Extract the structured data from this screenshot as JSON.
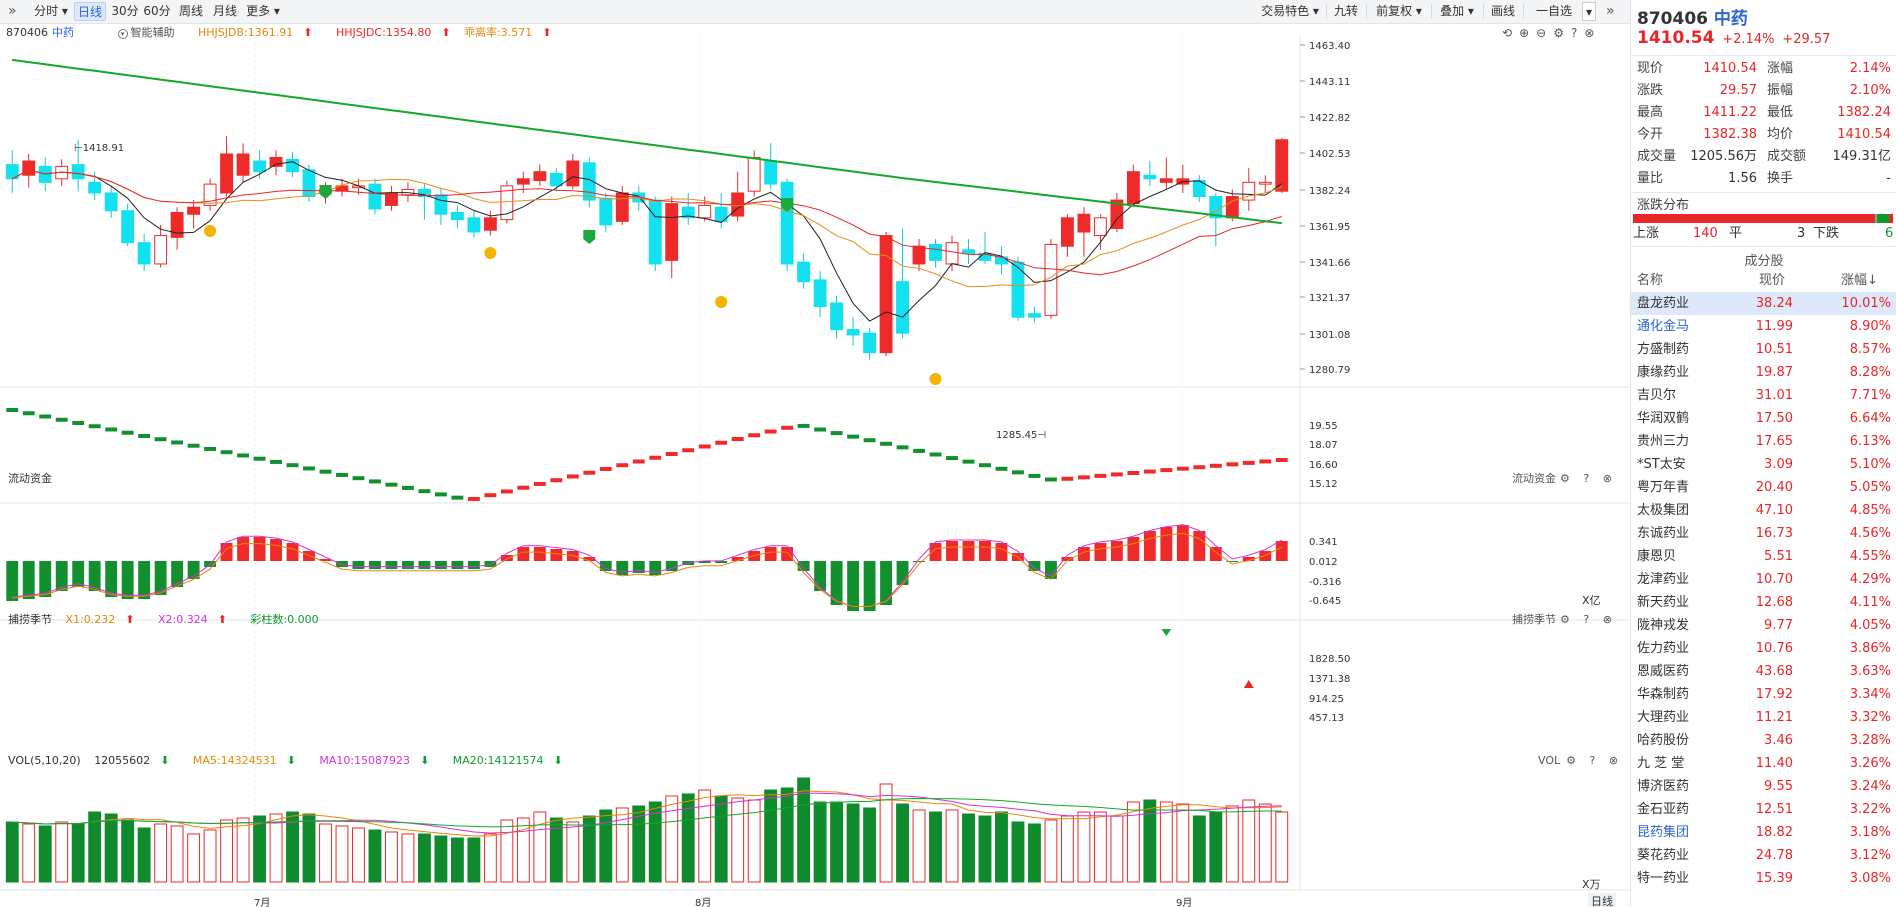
{
  "toolbar": {
    "left": [
      "分时",
      "日线",
      "30分",
      "60分",
      "周线",
      "月线",
      "更多"
    ],
    "right": [
      "交易特色",
      "九转",
      "前复权",
      "叠加",
      "画线",
      "一自选"
    ]
  },
  "header": {
    "code": "870406",
    "name": "中药",
    "smart": "智能辅助",
    "hh1": "HHJSJDB:1361.91",
    "hh2": "HHJSJDC:1354.80",
    "deviation": "乖离率:3.571"
  },
  "main_axis": [
    "1463.40",
    "1443.11",
    "1422.82",
    "1402.53",
    "1382.24",
    "1361.95",
    "1341.66",
    "1321.37",
    "1301.08",
    "1280.79"
  ],
  "annotations": {
    "high": "1418.91",
    "low": "1285.45"
  },
  "flow": {
    "title": "流动资金",
    "axis": [
      "19.55",
      "18.07",
      "16.60",
      "15.12"
    ],
    "unit": "X亿"
  },
  "catch": {
    "title": "捕捞季节",
    "x1": "X1:0.232",
    "x2": "X2:0.324",
    "bars": "彩柱数:0.000",
    "axis": [
      "0.341",
      "0.012",
      "-0.316",
      "-0.645"
    ]
  },
  "vol": {
    "title": "VOL(5,10,20)",
    "value": "12055602",
    "ma5": "MA5:14324531",
    "ma10": "MA10:15087923",
    "ma20": "MA20:14121574",
    "axis": [
      "1828.50",
      "1371.38",
      "914.25",
      "457.13"
    ],
    "unit": "X万"
  },
  "months": [
    "7月",
    "8月",
    "9月"
  ],
  "period_label": "日线",
  "side": {
    "code": "870406",
    "name": "中药",
    "price": "1410.54",
    "pct": "+2.14%",
    "chg": "+29.57",
    "quote": [
      [
        "现价",
        "1410.54",
        "涨幅",
        "2.14%"
      ],
      [
        "涨跌",
        "29.57",
        "振幅",
        "2.10%"
      ],
      [
        "最高",
        "1411.22",
        "最低",
        "1382.24"
      ],
      [
        "今开",
        "1382.38",
        "均价",
        "1410.54"
      ],
      [
        "成交量",
        "1205.56万",
        "成交额",
        "149.31亿"
      ],
      [
        "量比",
        "1.56",
        "换手",
        "-"
      ]
    ],
    "dist_title": "涨跌分布",
    "up_label": "上涨",
    "up": "140",
    "flat_label": "平",
    "flat": "3",
    "down_label": "下跌",
    "down": "6",
    "comp_title": "成分股",
    "cols": [
      "名称",
      "现价",
      "涨幅↓"
    ],
    "stocks": [
      [
        "盘龙药业",
        "38.24",
        "10.01%"
      ],
      [
        "通化金马",
        "11.99",
        "8.90%"
      ],
      [
        "方盛制药",
        "10.51",
        "8.57%"
      ],
      [
        "康缘药业",
        "19.87",
        "8.28%"
      ],
      [
        "吉贝尔",
        "31.01",
        "7.71%"
      ],
      [
        "华润双鹤",
        "17.50",
        "6.64%"
      ],
      [
        "贵州三力",
        "17.65",
        "6.13%"
      ],
      [
        "*ST太安",
        "3.09",
        "5.10%"
      ],
      [
        "粤万年青",
        "20.40",
        "5.05%"
      ],
      [
        "太极集团",
        "47.10",
        "4.85%"
      ],
      [
        "东诚药业",
        "16.73",
        "4.56%"
      ],
      [
        "康恩贝",
        "5.51",
        "4.55%"
      ],
      [
        "龙津药业",
        "10.70",
        "4.29%"
      ],
      [
        "新天药业",
        "12.68",
        "4.11%"
      ],
      [
        "陇神戎发",
        "9.77",
        "4.05%"
      ],
      [
        "佐力药业",
        "10.76",
        "3.86%"
      ],
      [
        "恩威医药",
        "43.68",
        "3.63%"
      ],
      [
        "华森制药",
        "17.92",
        "3.34%"
      ],
      [
        "大理药业",
        "11.21",
        "3.32%"
      ],
      [
        "哈药股份",
        "3.46",
        "3.28%"
      ],
      [
        "九 芝 堂",
        "11.40",
        "3.26%"
      ],
      [
        "博济医药",
        "9.55",
        "3.24%"
      ],
      [
        "金石亚药",
        "12.51",
        "3.22%"
      ],
      [
        "昆药集团",
        "18.82",
        "3.18%"
      ],
      [
        "葵花药业",
        "24.78",
        "3.12%"
      ],
      [
        "特一药业",
        "15.39",
        "3.08%"
      ]
    ]
  },
  "chart_data": {
    "type": "candlestick",
    "ylim": [
      1280.79,
      1463.4
    ],
    "candles": [
      [
        1396,
        1388,
        1404,
        1380
      ],
      [
        1390,
        1398,
        1402,
        1383
      ],
      [
        1395,
        1386,
        1400,
        1381
      ],
      [
        1388,
        1395,
        1399,
        1384
      ],
      [
        1396,
        1388,
        1410,
        1381
      ],
      [
        1386,
        1380,
        1392,
        1376
      ],
      [
        1380,
        1370,
        1384,
        1366
      ],
      [
        1370,
        1352,
        1374,
        1350
      ],
      [
        1352,
        1340,
        1357,
        1336
      ],
      [
        1340,
        1356,
        1362,
        1338
      ],
      [
        1355,
        1369,
        1372,
        1348
      ],
      [
        1368,
        1372,
        1376,
        1360
      ],
      [
        1373,
        1385,
        1388,
        1370
      ],
      [
        1380,
        1402,
        1412,
        1378
      ],
      [
        1390,
        1402,
        1408,
        1386
      ],
      [
        1398,
        1392,
        1404,
        1388
      ],
      [
        1395,
        1400,
        1404,
        1390
      ],
      [
        1399,
        1392,
        1403,
        1389
      ],
      [
        1393,
        1378,
        1396,
        1375
      ],
      [
        1380,
        1382,
        1386,
        1374
      ],
      [
        1381,
        1384,
        1388,
        1378
      ],
      [
        1383,
        1384,
        1388,
        1379
      ],
      [
        1385,
        1371,
        1388,
        1368
      ],
      [
        1373,
        1380,
        1384,
        1370
      ],
      [
        1379,
        1382,
        1386,
        1375
      ],
      [
        1382,
        1378,
        1385,
        1365
      ],
      [
        1379,
        1368,
        1383,
        1362
      ],
      [
        1369,
        1365,
        1373,
        1360
      ],
      [
        1366,
        1358,
        1370,
        1355
      ],
      [
        1359,
        1366,
        1370,
        1356
      ],
      [
        1365,
        1384,
        1387,
        1363
      ],
      [
        1385,
        1388,
        1392,
        1380
      ],
      [
        1387,
        1392,
        1396,
        1384
      ],
      [
        1391,
        1384,
        1394,
        1381
      ],
      [
        1384,
        1398,
        1402,
        1382
      ],
      [
        1397,
        1376,
        1400,
        1372
      ],
      [
        1377,
        1362,
        1380,
        1358
      ],
      [
        1364,
        1380,
        1384,
        1362
      ],
      [
        1380,
        1375,
        1384,
        1370
      ],
      [
        1376,
        1340,
        1378,
        1336
      ],
      [
        1342,
        1374,
        1378,
        1332
      ],
      [
        1372,
        1366,
        1380,
        1362
      ],
      [
        1366,
        1373,
        1378,
        1364
      ],
      [
        1372,
        1364,
        1380,
        1360
      ],
      [
        1367,
        1380,
        1392,
        1364
      ],
      [
        1381,
        1400,
        1404,
        1378
      ],
      [
        1398,
        1385,
        1408,
        1382
      ],
      [
        1386,
        1340,
        1388,
        1336
      ],
      [
        1341,
        1330,
        1346,
        1326
      ],
      [
        1331,
        1316,
        1336,
        1310
      ],
      [
        1318,
        1303,
        1322,
        1298
      ],
      [
        1303,
        1300,
        1310,
        1294
      ],
      [
        1301,
        1290,
        1304,
        1286
      ],
      [
        1290,
        1356,
        1358,
        1288
      ],
      [
        1330,
        1301,
        1360,
        1298
      ],
      [
        1340,
        1350,
        1354,
        1336
      ],
      [
        1351,
        1342,
        1354,
        1338
      ],
      [
        1340,
        1352,
        1356,
        1336
      ],
      [
        1348,
        1346,
        1354,
        1340
      ],
      [
        1346,
        1342,
        1358,
        1340
      ],
      [
        1344,
        1340,
        1350,
        1334
      ],
      [
        1341,
        1310,
        1344,
        1308
      ],
      [
        1312,
        1310,
        1316,
        1307
      ],
      [
        1311,
        1351,
        1354,
        1309
      ],
      [
        1350,
        1366,
        1368,
        1344
      ],
      [
        1358,
        1368,
        1372,
        1344
      ],
      [
        1356,
        1366,
        1368,
        1348
      ],
      [
        1360,
        1376,
        1380,
        1358
      ],
      [
        1374,
        1392,
        1396,
        1372
      ],
      [
        1390,
        1388,
        1398,
        1384
      ],
      [
        1386,
        1388,
        1400,
        1382
      ],
      [
        1385,
        1388,
        1396,
        1380
      ],
      [
        1387,
        1378,
        1390,
        1375
      ],
      [
        1378,
        1366,
        1380,
        1350
      ],
      [
        1366,
        1378,
        1382,
        1364
      ],
      [
        1376,
        1386,
        1394,
        1370
      ],
      [
        1385,
        1386,
        1390,
        1380
      ],
      [
        1381,
        1410,
        1411,
        1380
      ]
    ]
  }
}
